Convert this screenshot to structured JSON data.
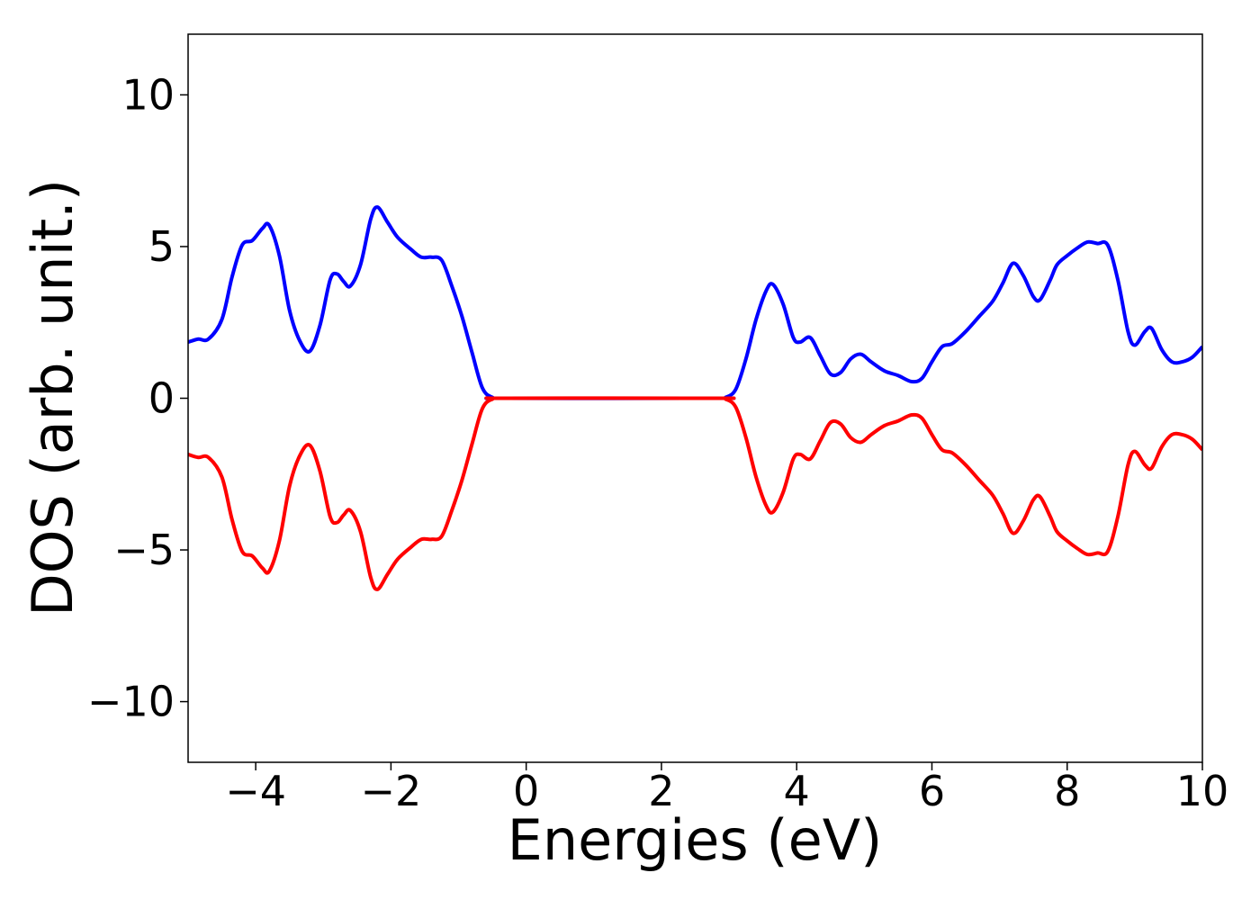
{
  "chart_data": {
    "type": "line",
    "title": "",
    "xlabel": "Energies (eV)",
    "ylabel": "DOS (arb. unit.)",
    "xlim": [
      -5,
      10
    ],
    "ylim": [
      -12,
      12
    ],
    "xticks": [
      -4,
      -2,
      0,
      2,
      4,
      6,
      8,
      10
    ],
    "xtick_labels": [
      "−4",
      "−2",
      "0",
      "2",
      "4",
      "6",
      "8",
      "10"
    ],
    "yticks": [
      -10,
      -5,
      0,
      5,
      10
    ],
    "ytick_labels": [
      "−10",
      "−5",
      "0",
      "5",
      "10"
    ],
    "grid": false,
    "legend": "none",
    "series": [
      {
        "color": "#0000ff",
        "points": [
          [
            -5.0,
            1.85
          ],
          [
            -4.85,
            1.95
          ],
          [
            -4.7,
            1.95
          ],
          [
            -4.5,
            2.6
          ],
          [
            -4.35,
            4.0
          ],
          [
            -4.2,
            5.05
          ],
          [
            -4.05,
            5.2
          ],
          [
            -3.9,
            5.6
          ],
          [
            -3.8,
            5.7
          ],
          [
            -3.65,
            4.7
          ],
          [
            -3.5,
            2.9
          ],
          [
            -3.35,
            1.9
          ],
          [
            -3.2,
            1.55
          ],
          [
            -3.05,
            2.4
          ],
          [
            -2.9,
            3.9
          ],
          [
            -2.8,
            4.1
          ],
          [
            -2.7,
            3.85
          ],
          [
            -2.6,
            3.7
          ],
          [
            -2.45,
            4.4
          ],
          [
            -2.3,
            5.9
          ],
          [
            -2.2,
            6.3
          ],
          [
            -2.05,
            5.8
          ],
          [
            -1.9,
            5.3
          ],
          [
            -1.7,
            4.9
          ],
          [
            -1.55,
            4.65
          ],
          [
            -1.4,
            4.65
          ],
          [
            -1.25,
            4.55
          ],
          [
            -1.1,
            3.7
          ],
          [
            -0.95,
            2.7
          ],
          [
            -0.8,
            1.5
          ],
          [
            -0.65,
            0.35
          ],
          [
            -0.5,
            0.03
          ],
          [
            -0.3,
            0.0
          ],
          [
            2.8,
            0.0
          ],
          [
            2.95,
            0.03
          ],
          [
            3.1,
            0.3
          ],
          [
            3.25,
            1.3
          ],
          [
            3.4,
            2.6
          ],
          [
            3.55,
            3.55
          ],
          [
            3.65,
            3.75
          ],
          [
            3.8,
            3.1
          ],
          [
            3.95,
            2.0
          ],
          [
            4.05,
            1.85
          ],
          [
            4.2,
            2.0
          ],
          [
            4.35,
            1.4
          ],
          [
            4.5,
            0.8
          ],
          [
            4.65,
            0.85
          ],
          [
            4.8,
            1.3
          ],
          [
            4.95,
            1.45
          ],
          [
            5.1,
            1.2
          ],
          [
            5.3,
            0.9
          ],
          [
            5.5,
            0.75
          ],
          [
            5.7,
            0.55
          ],
          [
            5.85,
            0.65
          ],
          [
            6.0,
            1.2
          ],
          [
            6.15,
            1.7
          ],
          [
            6.3,
            1.8
          ],
          [
            6.5,
            2.2
          ],
          [
            6.7,
            2.7
          ],
          [
            6.9,
            3.2
          ],
          [
            7.05,
            3.8
          ],
          [
            7.2,
            4.45
          ],
          [
            7.35,
            4.05
          ],
          [
            7.5,
            3.35
          ],
          [
            7.6,
            3.25
          ],
          [
            7.75,
            3.9
          ],
          [
            7.85,
            4.4
          ],
          [
            8.0,
            4.7
          ],
          [
            8.15,
            4.95
          ],
          [
            8.3,
            5.15
          ],
          [
            8.45,
            5.1
          ],
          [
            8.6,
            5.05
          ],
          [
            8.75,
            3.9
          ],
          [
            8.9,
            2.2
          ],
          [
            9.0,
            1.75
          ],
          [
            9.15,
            2.2
          ],
          [
            9.25,
            2.3
          ],
          [
            9.4,
            1.6
          ],
          [
            9.55,
            1.2
          ],
          [
            9.7,
            1.2
          ],
          [
            9.85,
            1.35
          ],
          [
            10.0,
            1.7
          ]
        ]
      },
      {
        "color": "#ff0000",
        "points": [
          [
            -5.0,
            -1.85
          ],
          [
            -4.85,
            -1.95
          ],
          [
            -4.7,
            -1.95
          ],
          [
            -4.5,
            -2.6
          ],
          [
            -4.35,
            -4.0
          ],
          [
            -4.2,
            -5.05
          ],
          [
            -4.05,
            -5.2
          ],
          [
            -3.9,
            -5.6
          ],
          [
            -3.8,
            -5.7
          ],
          [
            -3.65,
            -4.7
          ],
          [
            -3.5,
            -2.9
          ],
          [
            -3.35,
            -1.9
          ],
          [
            -3.2,
            -1.55
          ],
          [
            -3.05,
            -2.4
          ],
          [
            -2.9,
            -3.9
          ],
          [
            -2.8,
            -4.1
          ],
          [
            -2.7,
            -3.85
          ],
          [
            -2.6,
            -3.7
          ],
          [
            -2.45,
            -4.4
          ],
          [
            -2.3,
            -5.9
          ],
          [
            -2.2,
            -6.3
          ],
          [
            -2.05,
            -5.8
          ],
          [
            -1.9,
            -5.3
          ],
          [
            -1.7,
            -4.9
          ],
          [
            -1.55,
            -4.65
          ],
          [
            -1.4,
            -4.65
          ],
          [
            -1.25,
            -4.55
          ],
          [
            -1.1,
            -3.7
          ],
          [
            -0.95,
            -2.7
          ],
          [
            -0.8,
            -1.5
          ],
          [
            -0.65,
            -0.35
          ],
          [
            -0.5,
            -0.03
          ],
          [
            -0.3,
            0.0
          ],
          [
            2.8,
            0.0
          ],
          [
            2.95,
            -0.03
          ],
          [
            3.1,
            -0.3
          ],
          [
            3.25,
            -1.3
          ],
          [
            3.4,
            -2.6
          ],
          [
            3.55,
            -3.55
          ],
          [
            3.65,
            -3.75
          ],
          [
            3.8,
            -3.1
          ],
          [
            3.95,
            -2.0
          ],
          [
            4.05,
            -1.85
          ],
          [
            4.2,
            -2.0
          ],
          [
            4.35,
            -1.4
          ],
          [
            4.5,
            -0.8
          ],
          [
            4.65,
            -0.85
          ],
          [
            4.8,
            -1.3
          ],
          [
            4.95,
            -1.45
          ],
          [
            5.1,
            -1.2
          ],
          [
            5.3,
            -0.9
          ],
          [
            5.5,
            -0.75
          ],
          [
            5.7,
            -0.55
          ],
          [
            5.85,
            -0.65
          ],
          [
            6.0,
            -1.2
          ],
          [
            6.15,
            -1.7
          ],
          [
            6.3,
            -1.8
          ],
          [
            6.5,
            -2.2
          ],
          [
            6.7,
            -2.7
          ],
          [
            6.9,
            -3.2
          ],
          [
            7.05,
            -3.8
          ],
          [
            7.2,
            -4.45
          ],
          [
            7.35,
            -4.05
          ],
          [
            7.5,
            -3.35
          ],
          [
            7.6,
            -3.25
          ],
          [
            7.75,
            -3.9
          ],
          [
            7.85,
            -4.4
          ],
          [
            8.0,
            -4.7
          ],
          [
            8.15,
            -4.95
          ],
          [
            8.3,
            -5.15
          ],
          [
            8.45,
            -5.1
          ],
          [
            8.6,
            -5.05
          ],
          [
            8.75,
            -3.9
          ],
          [
            8.9,
            -2.2
          ],
          [
            9.0,
            -1.75
          ],
          [
            9.15,
            -2.2
          ],
          [
            9.25,
            -2.3
          ],
          [
            9.4,
            -1.6
          ],
          [
            9.55,
            -1.2
          ],
          [
            9.7,
            -1.2
          ],
          [
            9.85,
            -1.35
          ],
          [
            10.0,
            -1.7
          ]
        ]
      }
    ]
  }
}
